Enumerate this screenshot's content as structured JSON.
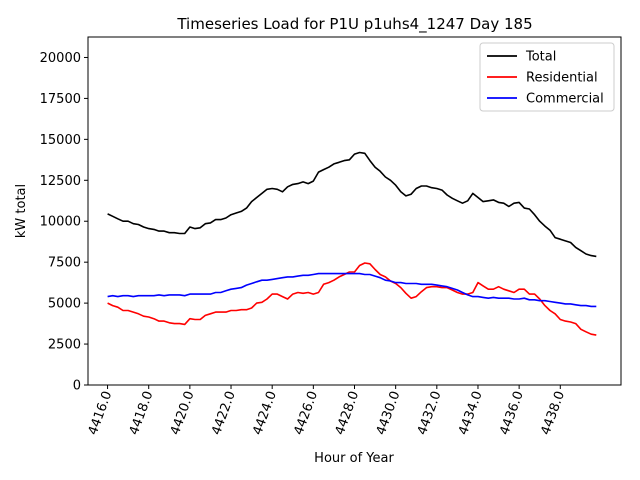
{
  "chart_data": {
    "type": "line",
    "title": "Timeseries Load for P1U p1uhs4_1247  Day 185",
    "xlabel": "Hour of Year",
    "ylabel": "kW total",
    "xlim": [
      4415.05,
      4440.95
    ],
    "ylim": [
      0,
      21250
    ],
    "xticks": [
      4416,
      4418,
      4420,
      4422,
      4424,
      4426,
      4428,
      4430,
      4432,
      4434,
      4436,
      4438
    ],
    "xtick_labels": [
      "4416.0",
      "4418.0",
      "4420.0",
      "4422.0",
      "4424.0",
      "4426.0",
      "4428.0",
      "4430.0",
      "4432.0",
      "4434.0",
      "4436.0",
      "4438.0"
    ],
    "yticks": [
      0,
      2500,
      5000,
      7500,
      10000,
      12500,
      15000,
      17500,
      20000
    ],
    "ytick_labels": [
      "0",
      "2500",
      "5000",
      "7500",
      "10000",
      "12500",
      "15000",
      "17500",
      "20000"
    ],
    "grid": false,
    "legend_position": "top-right",
    "x": [
      4416.0,
      4416.25,
      4416.5,
      4416.75,
      4417.0,
      4417.25,
      4417.5,
      4417.75,
      4418.0,
      4418.25,
      4418.5,
      4418.75,
      4419.0,
      4419.25,
      4419.5,
      4419.75,
      4420.0,
      4420.25,
      4420.5,
      4420.75,
      4421.0,
      4421.25,
      4421.5,
      4421.75,
      4422.0,
      4422.25,
      4422.5,
      4422.75,
      4423.0,
      4423.25,
      4423.5,
      4423.75,
      4424.0,
      4424.25,
      4424.5,
      4424.75,
      4425.0,
      4425.25,
      4425.5,
      4425.75,
      4426.0,
      4426.25,
      4426.5,
      4426.75,
      4427.0,
      4427.25,
      4427.5,
      4427.75,
      4428.0,
      4428.25,
      4428.5,
      4428.75,
      4429.0,
      4429.25,
      4429.5,
      4429.75,
      4430.0,
      4430.25,
      4430.5,
      4430.75,
      4431.0,
      4431.25,
      4431.5,
      4431.75,
      4432.0,
      4432.25,
      4432.5,
      4432.75,
      4433.0,
      4433.25,
      4433.5,
      4433.75,
      4434.0,
      4434.25,
      4434.5,
      4434.75,
      4435.0,
      4435.25,
      4435.5,
      4435.75,
      4436.0,
      4436.25,
      4436.5,
      4436.75,
      4437.0,
      4437.25,
      4437.5,
      4437.75,
      4438.0,
      4438.25,
      4438.5,
      4438.75,
      4439.0,
      4439.25,
      4439.5,
      4439.75
    ],
    "series": [
      {
        "name": "Total",
        "color": "#000000",
        "values": [
          10450,
          10300,
          10150,
          10000,
          10000,
          9850,
          9800,
          9650,
          9550,
          9500,
          9400,
          9400,
          9300,
          9300,
          9250,
          9250,
          9650,
          9550,
          9600,
          9850,
          9900,
          10100,
          10100,
          10200,
          10400,
          10500,
          10600,
          10800,
          11200,
          11450,
          11700,
          11950,
          12000,
          11950,
          11800,
          12100,
          12250,
          12300,
          12400,
          12300,
          12450,
          13000,
          13150,
          13300,
          13500,
          13600,
          13700,
          13750,
          14100,
          14200,
          14150,
          13700,
          13300,
          13050,
          12700,
          12500,
          12200,
          11800,
          11550,
          11650,
          12000,
          12150,
          12150,
          12050,
          12000,
          11900,
          11600,
          11400,
          11250,
          11100,
          11250,
          11700,
          11450,
          11200,
          11250,
          11300,
          11150,
          11100,
          10900,
          11100,
          11150,
          10800,
          10750,
          10400,
          10000,
          9700,
          9450,
          9000,
          8900,
          8800,
          8700,
          8400,
          8200,
          8000,
          7900,
          7850
        ]
      },
      {
        "name": "Residential",
        "color": "#ff0000",
        "values": [
          5000,
          4850,
          4750,
          4550,
          4550,
          4450,
          4350,
          4200,
          4150,
          4050,
          3900,
          3900,
          3800,
          3750,
          3750,
          3700,
          4050,
          4000,
          4000,
          4250,
          4350,
          4450,
          4450,
          4450,
          4550,
          4550,
          4600,
          4600,
          4700,
          5000,
          5050,
          5250,
          5550,
          5550,
          5400,
          5250,
          5550,
          5650,
          5600,
          5650,
          5550,
          5650,
          6150,
          6250,
          6400,
          6600,
          6750,
          6900,
          6900,
          7300,
          7450,
          7400,
          7050,
          6750,
          6600,
          6350,
          6200,
          5950,
          5600,
          5300,
          5400,
          5700,
          5950,
          6000,
          6000,
          5950,
          5950,
          5800,
          5650,
          5550,
          5550,
          5650,
          6250,
          6050,
          5850,
          5850,
          6000,
          5850,
          5750,
          5650,
          5850,
          5850,
          5550,
          5550,
          5250,
          4850,
          4550,
          4350,
          4000,
          3900,
          3850,
          3750,
          3400,
          3250,
          3100,
          3050
        ]
      },
      {
        "name": "Commercial",
        "color": "#0000ff",
        "values": [
          5400,
          5450,
          5400,
          5450,
          5450,
          5400,
          5450,
          5450,
          5450,
          5450,
          5500,
          5450,
          5500,
          5500,
          5500,
          5450,
          5550,
          5550,
          5550,
          5550,
          5550,
          5650,
          5650,
          5750,
          5850,
          5900,
          5950,
          6100,
          6200,
          6300,
          6400,
          6400,
          6450,
          6500,
          6550,
          6600,
          6600,
          6650,
          6700,
          6700,
          6750,
          6800,
          6800,
          6800,
          6800,
          6800,
          6800,
          6800,
          6800,
          6800,
          6750,
          6750,
          6650,
          6550,
          6400,
          6350,
          6250,
          6250,
          6200,
          6200,
          6200,
          6150,
          6150,
          6150,
          6100,
          6050,
          6000,
          5900,
          5800,
          5650,
          5500,
          5400,
          5400,
          5350,
          5300,
          5350,
          5300,
          5300,
          5300,
          5250,
          5250,
          5300,
          5200,
          5200,
          5150,
          5150,
          5100,
          5050,
          5000,
          4950,
          4950,
          4900,
          4850,
          4850,
          4800,
          4800
        ]
      }
    ]
  }
}
